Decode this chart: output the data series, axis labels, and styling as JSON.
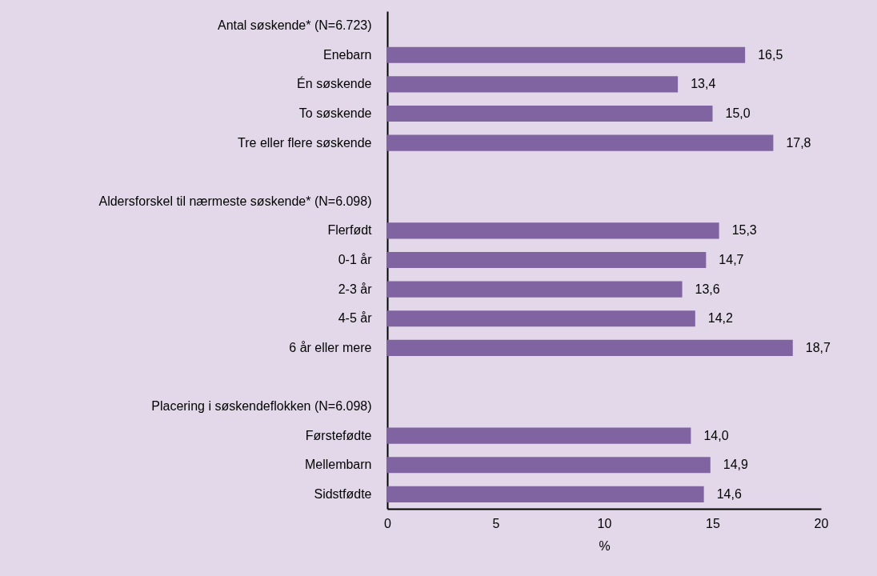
{
  "chart_data": {
    "type": "bar",
    "orientation": "horizontal",
    "categories": [
      "Antal søskende* (N=6.723)",
      "Enebarn",
      "Én søskende",
      "To søskende",
      "Tre eller flere søskende",
      null,
      "Aldersforskel til nærmeste søskende* (N=6.098)",
      "Flerfødt",
      "0-1 år",
      "2-3 år",
      "4-5 år",
      "6 år eller mere",
      null,
      "Placering i søskendeflokken (N=6.098)",
      "Førstefødte",
      "Mellembarn",
      "Sidstfødte"
    ],
    "values": [
      null,
      16.5,
      13.4,
      15.0,
      17.8,
      null,
      null,
      15.3,
      14.7,
      13.6,
      14.2,
      18.7,
      null,
      null,
      14.0,
      14.9,
      14.6
    ],
    "value_labels": [
      null,
      "16,5",
      "13,4",
      "15,0",
      "17,8",
      null,
      null,
      "15,3",
      "14,7",
      "13,6",
      "14,2",
      "18,7",
      null,
      null,
      "14,0",
      "14,9",
      "14,6"
    ],
    "color": "#8064a2",
    "xlabel": "%",
    "xlim": [
      0,
      20
    ],
    "xticks": [
      0,
      5,
      10,
      15,
      20
    ],
    "grid": false
  }
}
